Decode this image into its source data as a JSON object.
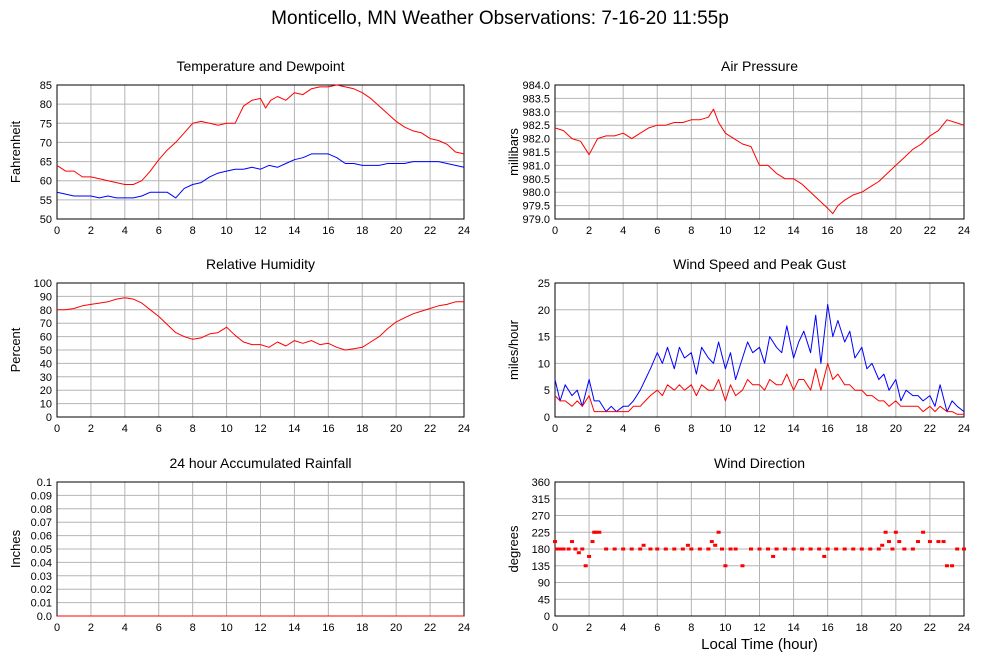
{
  "page": {
    "title": "Monticello, MN Weather Observations: 7-16-20 11:55p",
    "x_caption": "Local Time (hour)"
  },
  "colors": {
    "red": "#ff0000",
    "blue": "#0000ff",
    "grid": "#b4b4b4"
  },
  "chart_data": [
    {
      "type": "line",
      "title": "Temperature and Dewpoint",
      "ylabel": "Fahrenheit",
      "xlim": [
        0,
        24
      ],
      "ylim": [
        50,
        85
      ],
      "x_ticks": [
        0,
        2,
        4,
        6,
        8,
        10,
        12,
        14,
        16,
        18,
        20,
        22,
        24
      ],
      "y_ticks": [
        "50",
        "55",
        "60",
        "65",
        "70",
        "75",
        "80",
        "85"
      ],
      "grid": true,
      "series": [
        {
          "color": "red",
          "x": [
            0,
            0.5,
            1,
            1.5,
            2,
            2.5,
            3,
            3.5,
            4,
            4.5,
            5,
            5.5,
            6,
            6.5,
            7,
            7.5,
            8,
            8.5,
            9,
            9.5,
            10,
            10.5,
            11,
            11.5,
            12,
            12.3,
            12.6,
            13,
            13.5,
            14,
            14.5,
            15,
            15.5,
            16,
            16.5,
            17,
            17.5,
            18,
            18.5,
            19,
            19.5,
            20,
            20.5,
            21,
            21.5,
            22,
            22.5,
            23,
            23.5,
            24
          ],
          "y": [
            64,
            62.5,
            62.5,
            61,
            61,
            60.5,
            60,
            59.5,
            59,
            59,
            60,
            62.5,
            65.5,
            68,
            70,
            72.5,
            75,
            75.5,
            75,
            74.5,
            75,
            75,
            79.5,
            81,
            81.5,
            79,
            81,
            82,
            81,
            83,
            82.5,
            84,
            84.5,
            84.5,
            85,
            84.5,
            84,
            83,
            81.5,
            79.5,
            77.5,
            75.5,
            74,
            73,
            72.5,
            71,
            70.5,
            69.5,
            67.5,
            67
          ]
        },
        {
          "color": "blue",
          "x": [
            0,
            0.5,
            1,
            1.5,
            2,
            2.5,
            3,
            3.5,
            4,
            4.5,
            5,
            5.5,
            6,
            6.5,
            7,
            7.5,
            8,
            8.5,
            9,
            9.5,
            10,
            10.5,
            11,
            11.5,
            12,
            12.5,
            13,
            13.5,
            14,
            14.5,
            15,
            15.5,
            16,
            16.5,
            17,
            17.5,
            18,
            18.5,
            19,
            19.5,
            20,
            20.5,
            21,
            21.5,
            22,
            22.5,
            23,
            23.5,
            24
          ],
          "y": [
            57,
            56.5,
            56,
            56,
            56,
            55.5,
            56,
            55.5,
            55.5,
            55.5,
            56,
            57,
            57,
            57,
            55.5,
            58,
            59,
            59.5,
            61,
            62,
            62.5,
            63,
            63,
            63.5,
            63,
            64,
            63.5,
            64.5,
            65.5,
            66,
            67,
            67,
            67,
            66,
            64.5,
            64.5,
            64,
            64,
            64,
            64.5,
            64.5,
            64.5,
            65,
            65,
            65,
            65,
            64.5,
            64,
            63.5
          ]
        }
      ]
    },
    {
      "type": "line",
      "title": "Air Pressure",
      "ylabel": "millibars",
      "xlim": [
        0,
        24
      ],
      "ylim": [
        979,
        984
      ],
      "x_ticks": [
        0,
        2,
        4,
        6,
        8,
        10,
        12,
        14,
        16,
        18,
        20,
        22,
        24
      ],
      "y_ticks": [
        "979.0",
        "979.5",
        "980.0",
        "980.5",
        "981.0",
        "981.5",
        "982.0",
        "982.5",
        "983.0",
        "983.5",
        "984.0"
      ],
      "grid": true,
      "series": [
        {
          "color": "red",
          "x": [
            0,
            0.5,
            1,
            1.5,
            2,
            2.5,
            3,
            3.5,
            4,
            4.5,
            5,
            5.5,
            6,
            6.5,
            7,
            7.5,
            8,
            8.5,
            9,
            9.3,
            9.6,
            10,
            10.5,
            11,
            11.5,
            12,
            12.5,
            13,
            13.5,
            14,
            14.5,
            15,
            15.5,
            16,
            16.3,
            16.6,
            17,
            17.5,
            18,
            18.5,
            19,
            19.5,
            20,
            20.5,
            21,
            21.5,
            22,
            22.5,
            23,
            23.5,
            24
          ],
          "y": [
            982.4,
            982.3,
            982.0,
            981.9,
            981.4,
            982.0,
            982.1,
            982.1,
            982.2,
            982.0,
            982.2,
            982.4,
            982.5,
            982.5,
            982.6,
            982.6,
            982.7,
            982.7,
            982.8,
            983.1,
            982.6,
            982.2,
            982.0,
            981.8,
            981.7,
            981.0,
            981.0,
            980.7,
            980.5,
            980.5,
            980.3,
            980.0,
            979.7,
            979.4,
            979.2,
            979.5,
            979.7,
            979.9,
            980.0,
            980.2,
            980.4,
            980.7,
            981.0,
            981.3,
            981.6,
            981.8,
            982.1,
            982.3,
            982.7,
            982.6,
            982.5
          ]
        }
      ]
    },
    {
      "type": "line",
      "title": "Relative Humidity",
      "ylabel": "Percent",
      "xlim": [
        0,
        24
      ],
      "ylim": [
        0,
        100
      ],
      "x_ticks": [
        0,
        2,
        4,
        6,
        8,
        10,
        12,
        14,
        16,
        18,
        20,
        22,
        24
      ],
      "y_ticks": [
        "0",
        "10",
        "20",
        "30",
        "40",
        "50",
        "60",
        "70",
        "80",
        "90",
        "100"
      ],
      "grid": true,
      "series": [
        {
          "color": "red",
          "x": [
            0,
            0.5,
            1,
            1.5,
            2,
            2.5,
            3,
            3.5,
            4,
            4.5,
            5,
            5.5,
            6,
            6.5,
            7,
            7.5,
            8,
            8.5,
            9,
            9.5,
            10,
            10.5,
            11,
            11.5,
            12,
            12.5,
            13,
            13.5,
            14,
            14.5,
            15,
            15.5,
            16,
            16.5,
            17,
            17.5,
            18,
            18.5,
            19,
            19.5,
            20,
            20.5,
            21,
            21.5,
            22,
            22.5,
            23,
            23.5,
            24
          ],
          "y": [
            80,
            80,
            81,
            83,
            84,
            85,
            86,
            88,
            89,
            88,
            85,
            80,
            75,
            69,
            63,
            60,
            58,
            59,
            62,
            63,
            67,
            61,
            56,
            54,
            54,
            52,
            56,
            53,
            57,
            55,
            57,
            54,
            55,
            52,
            50,
            51,
            52,
            56,
            60,
            66,
            71,
            74,
            77,
            79,
            81,
            83,
            84,
            86,
            86
          ]
        }
      ]
    },
    {
      "type": "line",
      "title": "Wind Speed and Peak Gust",
      "ylabel": "miles/hour",
      "xlim": [
        0,
        24
      ],
      "ylim": [
        0,
        25
      ],
      "x_ticks": [
        0,
        2,
        4,
        6,
        8,
        10,
        12,
        14,
        16,
        18,
        20,
        22,
        24
      ],
      "y_ticks": [
        "0",
        "5",
        "10",
        "15",
        "20",
        "25"
      ],
      "grid": true,
      "series": [
        {
          "color": "blue",
          "x": [
            0,
            0.3,
            0.6,
            1,
            1.3,
            1.6,
            2,
            2.3,
            2.6,
            3,
            3.3,
            3.6,
            4,
            4.3,
            4.6,
            5,
            5.3,
            5.6,
            6,
            6.3,
            6.6,
            7,
            7.3,
            7.6,
            8,
            8.3,
            8.6,
            9,
            9.3,
            9.6,
            10,
            10.3,
            10.6,
            11,
            11.3,
            11.6,
            12,
            12.3,
            12.6,
            13,
            13.3,
            13.6,
            14,
            14.3,
            14.6,
            15,
            15.3,
            15.6,
            16,
            16.3,
            16.6,
            17,
            17.3,
            17.6,
            18,
            18.3,
            18.6,
            19,
            19.3,
            19.6,
            20,
            20.3,
            20.6,
            21,
            21.3,
            21.6,
            22,
            22.3,
            22.6,
            23,
            23.3,
            23.6,
            24
          ],
          "y": [
            7,
            3,
            6,
            4,
            5,
            2,
            7,
            3,
            3,
            1,
            2,
            1,
            2,
            2,
            3,
            5,
            7,
            9,
            12,
            10,
            13,
            9,
            13,
            11,
            12,
            8,
            13,
            11,
            10,
            14,
            9,
            12,
            7,
            11,
            14,
            12,
            13,
            10,
            15,
            13,
            12,
            17,
            11,
            14,
            16,
            12,
            19,
            10,
            21,
            15,
            18,
            14,
            16,
            11,
            13,
            9,
            10,
            7,
            8,
            5,
            7,
            3,
            5,
            4,
            4,
            3,
            4,
            2,
            6,
            1,
            3,
            2,
            1
          ]
        },
        {
          "color": "red",
          "x": [
            0,
            0.3,
            0.6,
            1,
            1.3,
            1.6,
            2,
            2.3,
            2.6,
            3,
            3.3,
            3.6,
            4,
            4.3,
            4.6,
            5,
            5.3,
            5.6,
            6,
            6.3,
            6.6,
            7,
            7.3,
            7.6,
            8,
            8.3,
            8.6,
            9,
            9.3,
            9.6,
            10,
            10.3,
            10.6,
            11,
            11.3,
            11.6,
            12,
            12.3,
            12.6,
            13,
            13.3,
            13.6,
            14,
            14.3,
            14.6,
            15,
            15.3,
            15.6,
            16,
            16.3,
            16.6,
            17,
            17.3,
            17.6,
            18,
            18.3,
            18.6,
            19,
            19.3,
            19.6,
            20,
            20.3,
            20.6,
            21,
            21.3,
            21.6,
            22,
            22.3,
            22.6,
            23,
            23.3,
            23.6,
            24
          ],
          "y": [
            4,
            3,
            3,
            2,
            3,
            2,
            4,
            1,
            1,
            1,
            1,
            1,
            1,
            1,
            2,
            2,
            3,
            4,
            5,
            4,
            6,
            5,
            6,
            5,
            6,
            4,
            6,
            5,
            5,
            7,
            3,
            6,
            4,
            5,
            7,
            6,
            6,
            5,
            7,
            6,
            6,
            8,
            5,
            7,
            7,
            5,
            9,
            5,
            10,
            7,
            8,
            6,
            6,
            5,
            5,
            4,
            4,
            3,
            3,
            2,
            3,
            2,
            2,
            2,
            2,
            1,
            2,
            1,
            2,
            1,
            1,
            0.5,
            0.5
          ]
        }
      ]
    },
    {
      "type": "line",
      "title": "24 hour Accumulated Rainfall",
      "ylabel": "Inches",
      "xlim": [
        0,
        24
      ],
      "ylim": [
        0,
        0.1
      ],
      "x_ticks": [
        0,
        2,
        4,
        6,
        8,
        10,
        12,
        14,
        16,
        18,
        20,
        22,
        24
      ],
      "y_ticks": [
        "0.0",
        "0.01",
        "0.02",
        "0.03",
        "0.04",
        "0.05",
        "0.06",
        "0.07",
        "0.08",
        "0.09",
        "0.1"
      ],
      "grid": true,
      "series": [
        {
          "color": "red",
          "x": [
            0,
            24
          ],
          "y": [
            0,
            0
          ]
        }
      ]
    },
    {
      "type": "scatter",
      "title": "Wind Direction",
      "ylabel": "degrees",
      "xlim": [
        0,
        24
      ],
      "ylim": [
        0,
        360
      ],
      "x_ticks": [
        0,
        2,
        4,
        6,
        8,
        10,
        12,
        14,
        16,
        18,
        20,
        22,
        24
      ],
      "y_ticks": [
        "0",
        "45",
        "90",
        "135",
        "180",
        "225",
        "270",
        "315",
        "360"
      ],
      "grid": true,
      "series": [
        {
          "color": "red",
          "x": [
            0,
            0.1,
            0.3,
            0.5,
            0.8,
            1.0,
            1.2,
            1.4,
            1.6,
            1.8,
            2.0,
            2.2,
            2.3,
            2.4,
            2.6,
            3.0,
            3.5,
            4.0,
            4.5,
            5.0,
            5.2,
            5.6,
            6.0,
            6.5,
            7.0,
            7.5,
            7.8,
            8.0,
            8.5,
            9.0,
            9.2,
            9.4,
            9.6,
            9.8,
            10.0,
            10.3,
            10.6,
            11.0,
            11.5,
            12.0,
            12.5,
            12.8,
            13.0,
            13.5,
            14.0,
            14.5,
            15.0,
            15.5,
            15.8,
            16.0,
            16.5,
            17.0,
            17.5,
            18.0,
            18.5,
            19.0,
            19.2,
            19.4,
            19.6,
            19.8,
            20.0,
            20.2,
            20.5,
            21.0,
            21.3,
            21.6,
            22.0,
            22.5,
            22.8,
            23.0,
            23.3,
            23.6,
            24.0
          ],
          "y": [
            200,
            180,
            180,
            180,
            180,
            200,
            180,
            170,
            180,
            135,
            160,
            200,
            225,
            225,
            225,
            180,
            180,
            180,
            180,
            180,
            190,
            180,
            180,
            180,
            180,
            180,
            190,
            180,
            180,
            180,
            200,
            190,
            225,
            180,
            135,
            180,
            180,
            135,
            180,
            180,
            180,
            160,
            180,
            180,
            180,
            180,
            180,
            180,
            160,
            180,
            180,
            180,
            180,
            180,
            180,
            180,
            190,
            225,
            200,
            180,
            225,
            200,
            180,
            180,
            200,
            225,
            200,
            200,
            200,
            135,
            135,
            180,
            180
          ]
        }
      ]
    }
  ]
}
